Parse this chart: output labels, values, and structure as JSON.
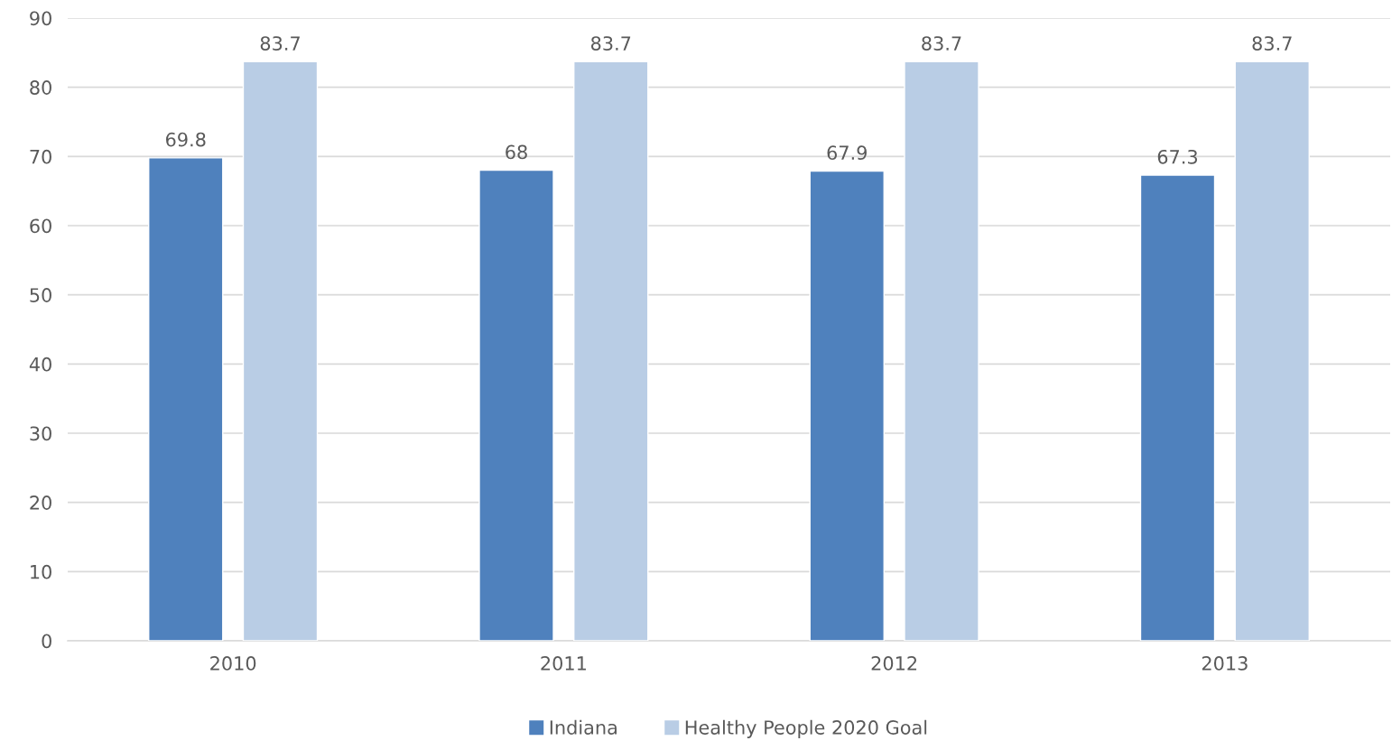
{
  "chart_data": {
    "type": "bar",
    "categories": [
      "2010",
      "2011",
      "2012",
      "2013"
    ],
    "series": [
      {
        "name": "Indiana",
        "color": "#4f81bd",
        "values": [
          69.8,
          68,
          67.9,
          67.3
        ]
      },
      {
        "name": "Healthy People 2020 Goal",
        "color": "#b9cde5",
        "values": [
          83.7,
          83.7,
          83.7,
          83.7
        ]
      }
    ],
    "ylim": [
      0,
      90
    ],
    "yticks": [
      0,
      10,
      20,
      30,
      40,
      50,
      60,
      70,
      80,
      90
    ],
    "grid": "y",
    "legend": "bottom",
    "data_labels": true
  }
}
